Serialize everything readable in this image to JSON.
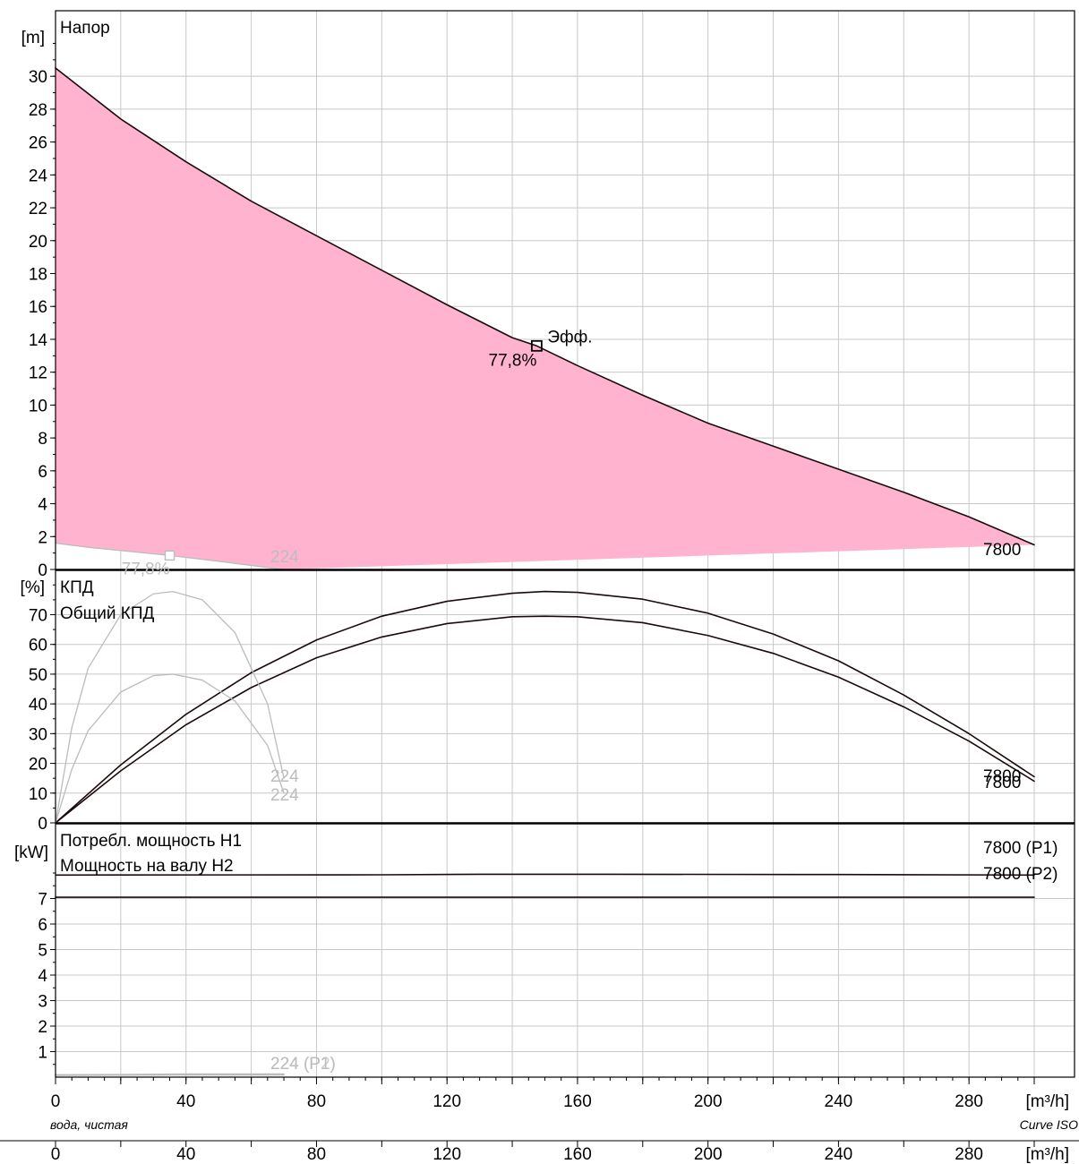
{
  "chart_data": [
    {
      "type": "area",
      "title": "Напор",
      "ylabel": "[m]",
      "xlabel": "[m³/h]",
      "xlim": [
        0,
        300
      ],
      "ylim": [
        0,
        32
      ],
      "yticks": [
        0,
        2,
        4,
        6,
        8,
        10,
        12,
        14,
        16,
        18,
        20,
        22,
        24,
        26,
        28,
        30
      ],
      "series": [
        {
          "name": "7800",
          "x": [
            0,
            20,
            40,
            60,
            80,
            100,
            120,
            140,
            147.5,
            160,
            180,
            200,
            220,
            240,
            260,
            280,
            300
          ],
          "values": [
            30.5,
            27.4,
            24.8,
            22.4,
            20.3,
            18.2,
            16.1,
            14.1,
            13.6,
            12.4,
            10.6,
            8.9,
            7.5,
            6.1,
            4.7,
            3.2,
            1.5
          ]
        },
        {
          "name": "224",
          "x": [
            0,
            10,
            20,
            35,
            50,
            65,
            70
          ],
          "values": [
            1.6,
            1.35,
            1.15,
            0.85,
            0.5,
            0.12,
            0.0
          ]
        }
      ],
      "markers": [
        {
          "x": 147.5,
          "y": 13.6,
          "label": "Эфф.",
          "value_label": "77,8%"
        },
        {
          "x": 35,
          "y": 0.85,
          "value_label": "77,8%"
        }
      ]
    },
    {
      "type": "line",
      "titles": [
        "КПД",
        "Общий КПД"
      ],
      "ylabel": "[%]",
      "xlim": [
        0,
        300
      ],
      "ylim": [
        0,
        80
      ],
      "yticks": [
        0,
        10,
        20,
        30,
        40,
        50,
        60,
        70
      ],
      "series": [
        {
          "name": "7800",
          "x": [
            0,
            20,
            40,
            60,
            80,
            100,
            120,
            140,
            150,
            160,
            180,
            200,
            220,
            240,
            260,
            280,
            300
          ],
          "values": [
            0,
            19.5,
            36.5,
            50.5,
            61.5,
            69.5,
            74.5,
            77.2,
            77.8,
            77.5,
            75.2,
            70.5,
            63.5,
            54.5,
            43,
            30,
            15.5
          ]
        },
        {
          "name": "7800",
          "x": [
            0,
            20,
            40,
            60,
            80,
            100,
            120,
            140,
            150,
            160,
            180,
            200,
            220,
            240,
            260,
            280,
            300
          ],
          "values": [
            0,
            17.5,
            33,
            45.5,
            55.5,
            62.5,
            67,
            69.3,
            69.5,
            69.3,
            67.3,
            63,
            57,
            49,
            39,
            27.5,
            14
          ]
        },
        {
          "name": "224",
          "x": [
            0,
            5,
            10,
            20,
            30,
            36,
            45,
            55,
            65,
            70
          ],
          "values": [
            0,
            32,
            52,
            70,
            77,
            77.8,
            75,
            64,
            40,
            15
          ]
        },
        {
          "name": "224",
          "x": [
            0,
            5,
            10,
            20,
            30,
            36,
            45,
            55,
            65,
            70
          ],
          "values": [
            0,
            18,
            31,
            44,
            49.5,
            50,
            48,
            41,
            26,
            10
          ]
        }
      ]
    },
    {
      "type": "line",
      "titles": [
        "Потребл. мощность Н1",
        "Мощность на валу Н2"
      ],
      "ylabel": "[kW]",
      "xlabel": "[m³/h]",
      "xlim": [
        0,
        300
      ],
      "ylim": [
        0,
        8
      ],
      "yticks": [
        1,
        2,
        3,
        4,
        5,
        6,
        7
      ],
      "xticks": [
        0,
        40,
        80,
        120,
        160,
        200,
        240,
        280
      ],
      "series": [
        {
          "name": "7800 (P1)",
          "x": [
            0,
            100,
            130,
            150,
            170,
            240,
            300
          ],
          "values": [
            7.92,
            7.93,
            7.95,
            7.95,
            7.95,
            7.94,
            7.92
          ]
        },
        {
          "name": "7800 (P2)",
          "x": [
            0,
            100,
            150,
            200,
            300
          ],
          "values": [
            7.05,
            7.05,
            7.05,
            7.05,
            7.05
          ]
        },
        {
          "name": "224 (P1)",
          "x": [
            0,
            20,
            40,
            60,
            70
          ],
          "values": [
            0.09,
            0.1,
            0.12,
            0.12,
            0.12
          ]
        },
        {
          "name": "224 (P2)",
          "x": [
            0,
            20,
            40,
            60,
            70
          ],
          "values": [
            0.07,
            0.08,
            0.09,
            0.09,
            0.09
          ]
        }
      ]
    }
  ],
  "footer": {
    "left_note": "вода, чистая",
    "right_note": "Curve ISO",
    "axis_unit": "[m³/h]",
    "xticks": [
      0,
      40,
      80,
      120,
      160,
      200,
      240,
      280
    ]
  },
  "colors": {
    "fill": "#FFB3CF",
    "main_curve": "#1a0a0a",
    "secondary_curve": "#bcbcbc",
    "grid": "#c8c8c8"
  }
}
